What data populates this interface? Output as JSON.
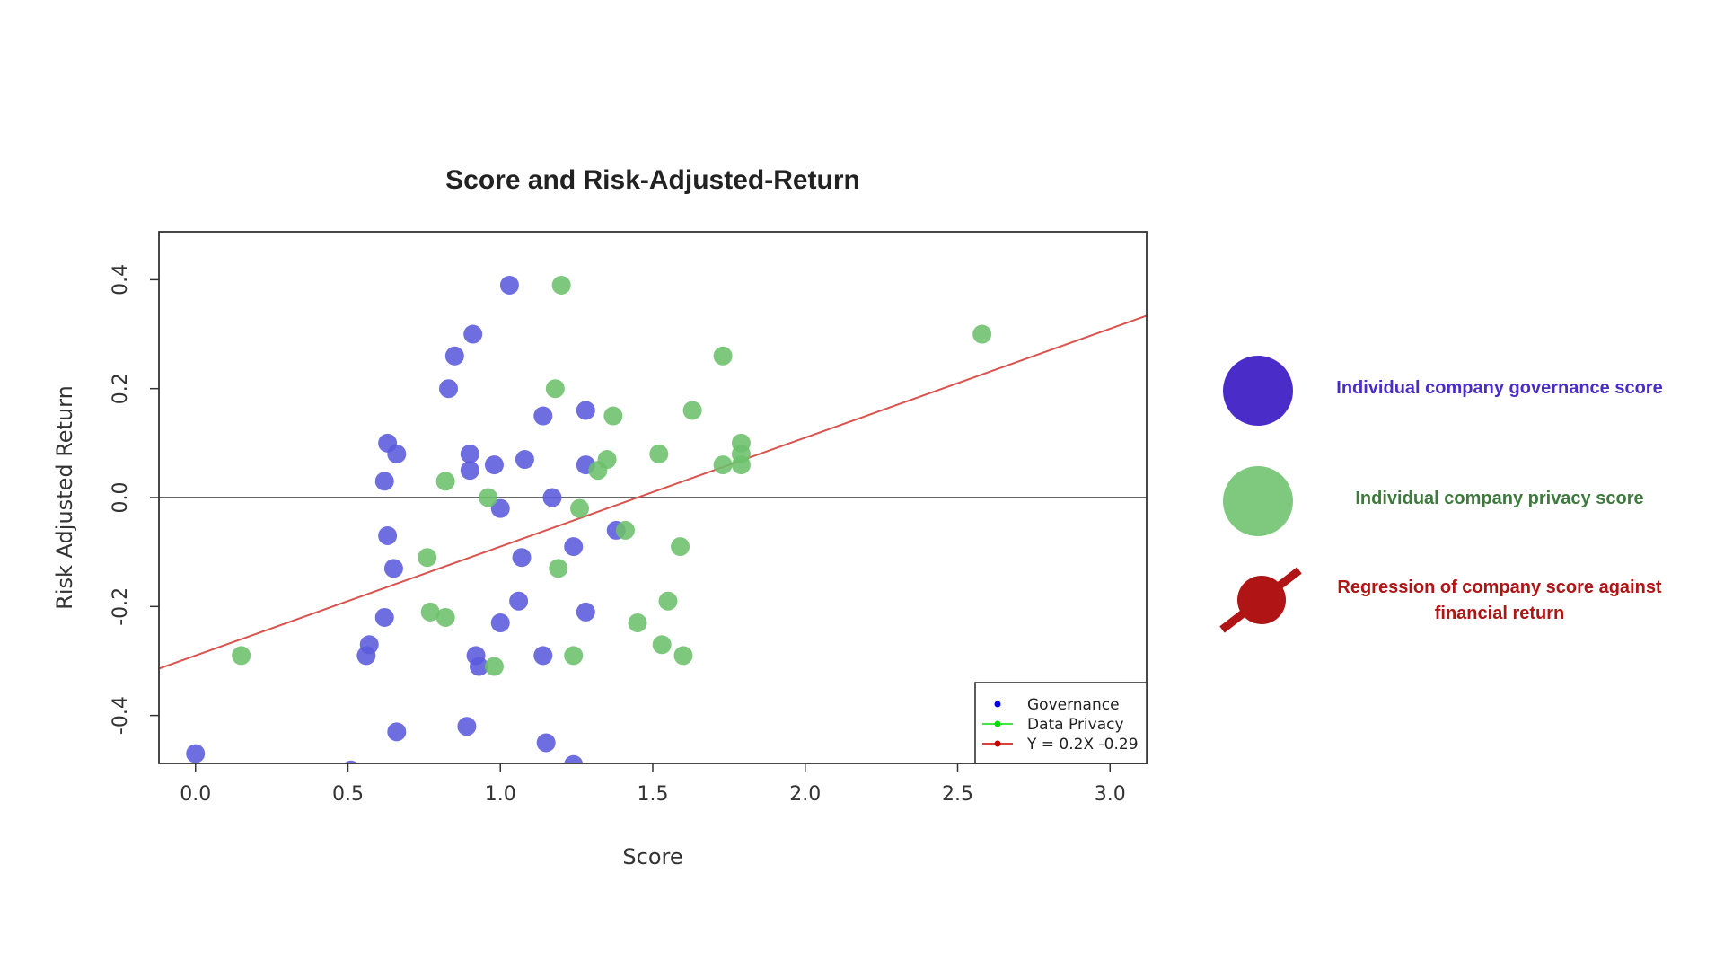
{
  "chart_data": {
    "type": "scatter",
    "title": "Score and Risk-Adjusted-Return",
    "xlabel": "Score",
    "ylabel": "Risk Adjusted Return",
    "xlim": [
      -0.12,
      3.12
    ],
    "ylim": [
      -0.488,
      0.488
    ],
    "xticks": [
      0.0,
      0.5,
      1.0,
      1.5,
      2.0,
      2.5,
      3.0
    ],
    "xtick_labels": [
      "0.0",
      "0.5",
      "1.0",
      "1.5",
      "2.0",
      "2.5",
      "3.0"
    ],
    "yticks": [
      -0.4,
      -0.2,
      0.0,
      0.2,
      0.4
    ],
    "ytick_labels": [
      "-0.4",
      "-0.2",
      "0.0",
      "0.2",
      "0.4"
    ],
    "hline": 0,
    "series": [
      {
        "name": "Governance",
        "color": "#5a5adc",
        "points": [
          [
            1.03,
            0.39
          ],
          [
            0.91,
            0.3
          ],
          [
            0.85,
            0.26
          ],
          [
            0.83,
            0.2
          ],
          [
            1.14,
            0.15
          ],
          [
            1.28,
            0.16
          ],
          [
            0.63,
            0.1
          ],
          [
            0.66,
            0.08
          ],
          [
            0.9,
            0.08
          ],
          [
            0.9,
            0.05
          ],
          [
            0.98,
            0.06
          ],
          [
            1.08,
            0.07
          ],
          [
            1.28,
            0.06
          ],
          [
            0.62,
            0.03
          ],
          [
            1.17,
            0.0
          ],
          [
            1.0,
            -0.02
          ],
          [
            0.63,
            -0.07
          ],
          [
            1.38,
            -0.06
          ],
          [
            1.24,
            -0.09
          ],
          [
            1.07,
            -0.11
          ],
          [
            0.65,
            -0.13
          ],
          [
            1.06,
            -0.19
          ],
          [
            1.28,
            -0.21
          ],
          [
            0.62,
            -0.22
          ],
          [
            1.0,
            -0.23
          ],
          [
            0.57,
            -0.27
          ],
          [
            0.56,
            -0.29
          ],
          [
            0.92,
            -0.29
          ],
          [
            0.93,
            -0.31
          ],
          [
            1.14,
            -0.29
          ],
          [
            0.66,
            -0.43
          ],
          [
            0.89,
            -0.42
          ],
          [
            1.15,
            -0.45
          ],
          [
            0.0,
            -0.47
          ],
          [
            0.51,
            -0.5
          ],
          [
            1.24,
            -0.49
          ]
        ]
      },
      {
        "name": "Data Privacy",
        "color": "#6cc06c",
        "points": [
          [
            1.2,
            0.39
          ],
          [
            2.58,
            0.3
          ],
          [
            1.73,
            0.26
          ],
          [
            1.18,
            0.2
          ],
          [
            1.37,
            0.15
          ],
          [
            1.63,
            0.16
          ],
          [
            1.79,
            0.1
          ],
          [
            1.79,
            0.08
          ],
          [
            1.79,
            0.06
          ],
          [
            1.73,
            0.06
          ],
          [
            1.52,
            0.08
          ],
          [
            1.35,
            0.07
          ],
          [
            1.32,
            0.05
          ],
          [
            0.82,
            0.03
          ],
          [
            0.96,
            0.0
          ],
          [
            1.26,
            -0.02
          ],
          [
            1.41,
            -0.06
          ],
          [
            1.59,
            -0.09
          ],
          [
            0.76,
            -0.11
          ],
          [
            1.19,
            -0.13
          ],
          [
            1.55,
            -0.19
          ],
          [
            0.77,
            -0.21
          ],
          [
            0.82,
            -0.22
          ],
          [
            1.45,
            -0.23
          ],
          [
            1.53,
            -0.27
          ],
          [
            1.6,
            -0.29
          ],
          [
            1.24,
            -0.29
          ],
          [
            0.98,
            -0.31
          ],
          [
            0.15,
            -0.29
          ]
        ]
      }
    ],
    "regression": {
      "name": "Y = 0.2X -0.29",
      "slope": 0.2,
      "intercept": -0.29,
      "color": "#d9534f"
    },
    "legend": {
      "position": "bottom-right",
      "entries": [
        {
          "label": "Governance",
          "color": "#0000ee",
          "marker": "point"
        },
        {
          "label": "Data Privacy",
          "color": "#00dd00",
          "marker": "line-point"
        },
        {
          "label": "Y = 0.2X -0.29",
          "color": "#cc0000",
          "marker": "line-point"
        }
      ]
    }
  },
  "annotations": [
    {
      "text": "Individual company governance score",
      "color": "#4a2cc8",
      "icon": "circle",
      "icon_color": "#4a2cc8"
    },
    {
      "text": "Individual company privacy score",
      "color": "#3e7a3e",
      "icon": "circle",
      "icon_color": "#7fc97f"
    },
    {
      "text": "Regression of company score against financial return",
      "color": "#b01414",
      "icon": "circle-with-line",
      "icon_color": "#b01414"
    }
  ]
}
